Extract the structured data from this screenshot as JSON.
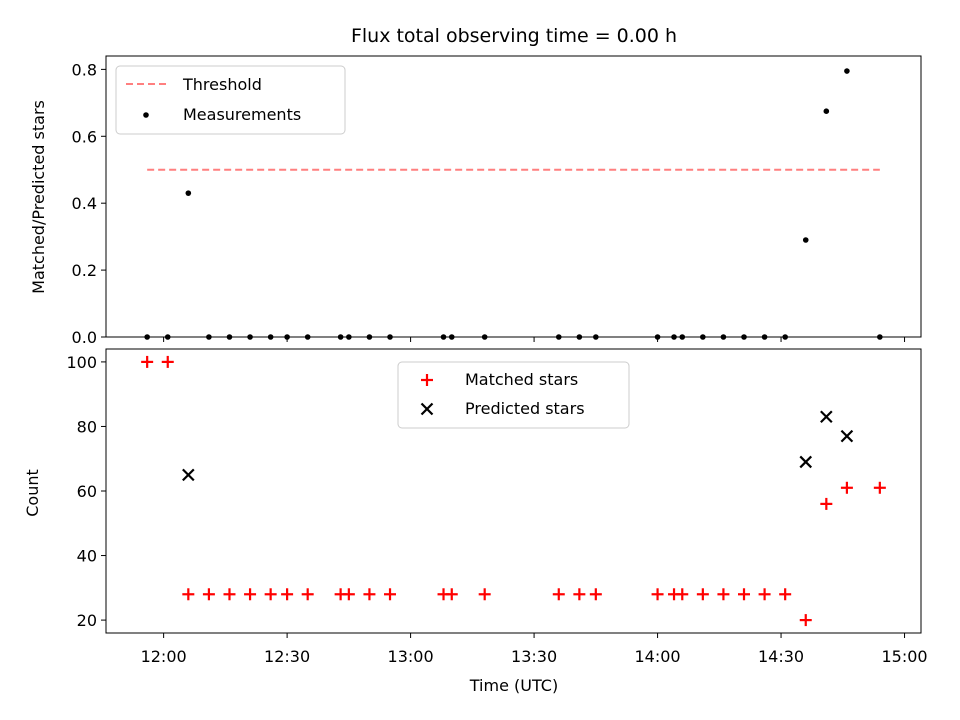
{
  "chart_data": [
    {
      "type": "scatter",
      "title": "Flux total observing time = 0.00 h",
      "xlabel": "",
      "ylabel": "Matched/Predicted stars",
      "ylim": [
        0,
        0.84
      ],
      "yticks": [
        0,
        0.2,
        0.4,
        0.6,
        0.8
      ],
      "ytick_labels": [
        "0.0",
        "0.2",
        "0.4",
        "0.6",
        "0.8"
      ],
      "legend_position": "top-left",
      "grid": false,
      "threshold": {
        "name": "Threshold",
        "value": 0.5,
        "x_range": [
          "11:56",
          "14:54"
        ],
        "color": "#ff7f7f",
        "style": "dashed"
      },
      "series": [
        {
          "name": "Measurements",
          "marker": "dot",
          "color": "#000000",
          "x": [
            "11:56",
            "12:01",
            "12:06",
            "12:11",
            "12:16",
            "12:21",
            "12:26",
            "12:30",
            "12:35",
            "12:43",
            "12:45",
            "12:50",
            "12:55",
            "13:08",
            "13:10",
            "13:18",
            "13:36",
            "13:41",
            "13:45",
            "14:00",
            "14:04",
            "14:06",
            "14:11",
            "14:16",
            "14:21",
            "14:26",
            "14:31",
            "14:36",
            "14:41",
            "14:46",
            "14:54"
          ],
          "y": [
            0,
            0,
            0.43,
            0,
            0,
            0,
            0,
            0,
            0,
            0,
            0,
            0,
            0,
            0,
            0,
            0,
            0,
            0,
            0,
            0,
            0,
            0,
            0,
            0,
            0,
            0,
            0,
            0.29,
            0.675,
            0.795,
            0
          ]
        }
      ]
    },
    {
      "type": "scatter",
      "title": "",
      "xlabel": "Time (UTC)",
      "ylabel": "Count",
      "ylim": [
        16,
        104
      ],
      "yticks": [
        20,
        40,
        60,
        80,
        100
      ],
      "ytick_labels": [
        "20",
        "40",
        "60",
        "80",
        "100"
      ],
      "xlim": [
        "11:46",
        "15:04"
      ],
      "xticks": [
        "12:00",
        "12:30",
        "13:00",
        "13:30",
        "14:00",
        "14:30",
        "15:00"
      ],
      "xtick_labels": [
        "12:00",
        "12:30",
        "13:00",
        "13:30",
        "14:00",
        "14:30",
        "15:00"
      ],
      "legend_position": "top-center",
      "grid": false,
      "series": [
        {
          "name": "Matched stars",
          "marker": "plus",
          "color": "#ff0000",
          "x": [
            "11:56",
            "12:01",
            "12:06",
            "12:11",
            "12:16",
            "12:21",
            "12:26",
            "12:30",
            "12:35",
            "12:43",
            "12:45",
            "12:50",
            "12:55",
            "13:08",
            "13:10",
            "13:18",
            "13:36",
            "13:41",
            "13:45",
            "14:00",
            "14:04",
            "14:06",
            "14:11",
            "14:16",
            "14:21",
            "14:26",
            "14:31",
            "14:36",
            "14:41",
            "14:46",
            "14:54"
          ],
          "y": [
            100,
            100,
            28,
            28,
            28,
            28,
            28,
            28,
            28,
            28,
            28,
            28,
            28,
            28,
            28,
            28,
            28,
            28,
            28,
            28,
            28,
            28,
            28,
            28,
            28,
            28,
            28,
            20,
            56,
            61,
            61
          ]
        },
        {
          "name": "Predicted stars",
          "marker": "x",
          "color": "#000000",
          "x": [
            "12:06",
            "14:36",
            "14:41",
            "14:46"
          ],
          "y": [
            65,
            69,
            83,
            77
          ]
        }
      ]
    }
  ]
}
